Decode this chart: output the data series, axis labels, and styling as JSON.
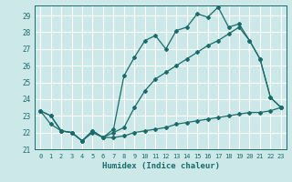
{
  "title": "",
  "xlabel": "Humidex (Indice chaleur)",
  "ylabel": "",
  "background_color": "#cde8e8",
  "grid_color": "#b8d8d8",
  "line_color": "#1a6b6b",
  "ylim": [
    21.0,
    29.6
  ],
  "xlim": [
    -0.5,
    23.5
  ],
  "yticks": [
    21,
    22,
    23,
    24,
    25,
    26,
    27,
    28,
    29
  ],
  "xticks": [
    0,
    1,
    2,
    3,
    4,
    5,
    6,
    7,
    8,
    9,
    10,
    11,
    12,
    13,
    14,
    15,
    16,
    17,
    18,
    19,
    20,
    21,
    22,
    23
  ],
  "line1_y": [
    23.3,
    23.0,
    22.1,
    22.0,
    21.5,
    22.1,
    21.7,
    22.2,
    25.4,
    26.5,
    27.5,
    27.8,
    27.0,
    28.1,
    28.3,
    29.1,
    28.9,
    29.5,
    28.3,
    28.5,
    27.5,
    26.4,
    24.1,
    23.5
  ],
  "line2_y": [
    23.3,
    23.0,
    22.1,
    22.0,
    21.5,
    22.1,
    21.7,
    22.0,
    22.3,
    23.5,
    24.5,
    25.2,
    25.6,
    26.0,
    26.4,
    26.8,
    27.2,
    27.5,
    27.9,
    28.3,
    27.5,
    26.4,
    24.1,
    23.5
  ],
  "line3_y": [
    23.3,
    22.5,
    22.1,
    22.0,
    21.5,
    22.0,
    21.7,
    21.7,
    21.8,
    22.0,
    22.1,
    22.2,
    22.3,
    22.5,
    22.6,
    22.7,
    22.8,
    22.9,
    23.0,
    23.1,
    23.2,
    23.2,
    23.3,
    23.5
  ]
}
